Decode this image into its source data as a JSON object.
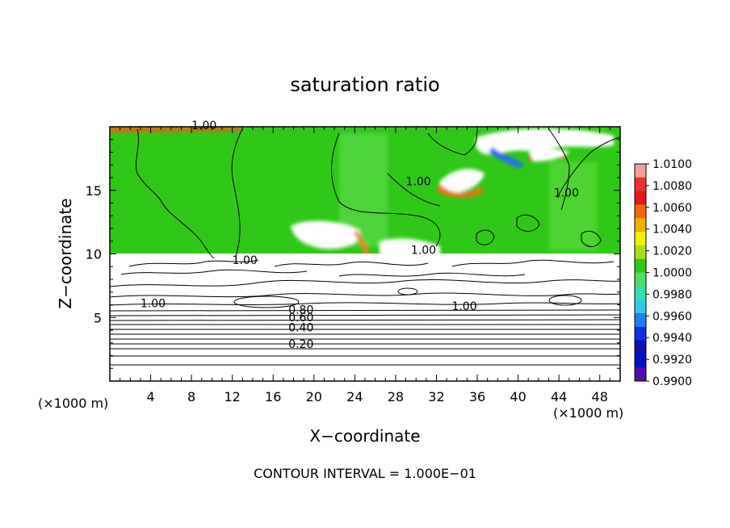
{
  "chart_data": {
    "type": "heatmap",
    "title": "saturation ratio",
    "xlabel": "X−coordinate",
    "ylabel": "Z−coordinate",
    "x_unit_label": "(×1000 m)",
    "y_unit_label": "(×1000 m)",
    "xlim": [
      0,
      50
    ],
    "ylim": [
      0,
      20
    ],
    "x_ticks": [
      "4",
      "8",
      "12",
      "16",
      "20",
      "24",
      "28",
      "32",
      "36",
      "40",
      "44",
      "48"
    ],
    "y_ticks": [
      "5",
      "10",
      "15"
    ],
    "colorbar": {
      "labels": [
        "1.0100",
        "1.0080",
        "1.0060",
        "1.0040",
        "1.0020",
        "1.0000",
        "0.9980",
        "0.9960",
        "0.9940",
        "0.9920",
        "0.9900"
      ],
      "colors": [
        "#f4a0a0",
        "#f03030",
        "#e01818",
        "#f06a10",
        "#f0b000",
        "#f0f000",
        "#a8e018",
        "#30c818",
        "#50dc60",
        "#30e0b0",
        "#30c8e8",
        "#2080f0",
        "#1030e0",
        "#1010b0",
        "#0010c8",
        "#5010a8"
      ]
    },
    "contour_labels": [
      {
        "text": "1.00",
        "x": 8,
        "z": 19.8
      },
      {
        "text": "1.00",
        "x": 29,
        "z": 15.4
      },
      {
        "text": "1.00",
        "x": 43.5,
        "z": 14.5
      },
      {
        "text": "1.00",
        "x": 29.5,
        "z": 10.0
      },
      {
        "text": "1.00",
        "x": 12,
        "z": 9.2
      },
      {
        "text": "1.00",
        "x": 3,
        "z": 5.8
      },
      {
        "text": "1.00",
        "x": 33.5,
        "z": 5.6
      },
      {
        "text": "0.80",
        "x": 17.5,
        "z": 5.3
      },
      {
        "text": "0.60",
        "x": 17.5,
        "z": 4.7
      },
      {
        "text": "0.40",
        "x": 17.5,
        "z": 3.9
      },
      {
        "text": "0.20",
        "x": 17.5,
        "z": 2.6
      }
    ],
    "contour_interval_text": "CONTOUR INTERVAL = 1.000E−01"
  },
  "colors": {
    "background": "#ffffff",
    "field_green": "#30c818",
    "contour_line": "#000000"
  }
}
